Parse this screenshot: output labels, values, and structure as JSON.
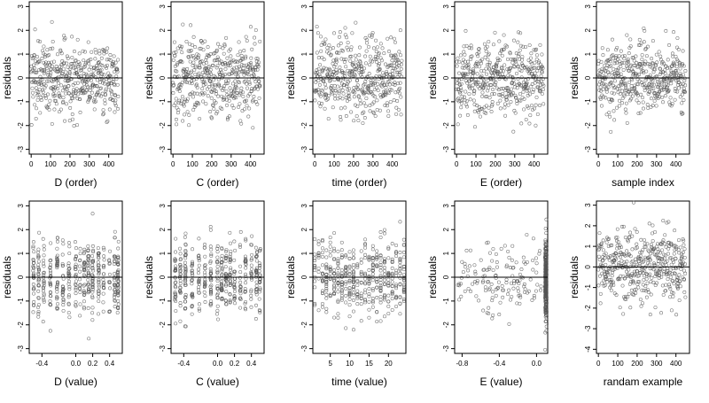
{
  "chart_data": [
    {
      "type": "scatter",
      "xlabel": "D (order)",
      "ylabel": "residuals",
      "xlim": [
        -10,
        470
      ],
      "ylim": [
        -3.2,
        3.2
      ],
      "xticks": [
        0,
        100,
        200,
        300,
        400
      ],
      "xtick_labels": [
        "0",
        "100",
        "200",
        "300",
        "400"
      ],
      "yticks": [
        -3,
        -2,
        -1,
        0,
        1,
        2,
        3
      ],
      "ytick_labels": [
        "-3",
        "-2",
        "-1",
        "0",
        "1",
        "2",
        "3"
      ],
      "hline": 0,
      "point_color": "#555555",
      "n_points": 450
    },
    {
      "type": "scatter",
      "xlabel": "C (order)",
      "ylabel": "residuals",
      "xlim": [
        -10,
        470
      ],
      "ylim": [
        -3.2,
        3.2
      ],
      "xticks": [
        0,
        100,
        200,
        300,
        400
      ],
      "xtick_labels": [
        "0",
        "100",
        "200",
        "300",
        "400"
      ],
      "yticks": [
        -3,
        -2,
        -1,
        0,
        1,
        2,
        3
      ],
      "ytick_labels": [
        "-3",
        "-2",
        "-1",
        "0",
        "1",
        "2",
        "3"
      ],
      "hline": 0,
      "point_color": "#555555",
      "n_points": 450
    },
    {
      "type": "scatter",
      "xlabel": "time (order)",
      "ylabel": "residuals",
      "xlim": [
        -10,
        470
      ],
      "ylim": [
        -3.2,
        3.2
      ],
      "xticks": [
        0,
        100,
        200,
        300,
        400
      ],
      "xtick_labels": [
        "0",
        "100",
        "200",
        "300",
        "400"
      ],
      "yticks": [
        -3,
        -2,
        -1,
        0,
        1,
        2,
        3
      ],
      "ytick_labels": [
        "-3",
        "-2",
        "-1",
        "0",
        "1",
        "2",
        "3"
      ],
      "hline": 0,
      "point_color": "#555555",
      "n_points": 450
    },
    {
      "type": "scatter",
      "xlabel": "E (order)",
      "ylabel": "residuals",
      "xlim": [
        -10,
        470
      ],
      "ylim": [
        -3.2,
        3.2
      ],
      "xticks": [
        0,
        100,
        200,
        300,
        400
      ],
      "xtick_labels": [
        "0",
        "100",
        "200",
        "300",
        "400"
      ],
      "yticks": [
        -3,
        -2,
        -1,
        0,
        1,
        2,
        3
      ],
      "ytick_labels": [
        "-3",
        "-2",
        "-1",
        "0",
        "1",
        "2",
        "3"
      ],
      "hline": 0,
      "point_color": "#555555",
      "n_points": 450
    },
    {
      "type": "scatter",
      "xlabel": "sample index",
      "ylabel": "residuals",
      "xlim": [
        -10,
        470
      ],
      "ylim": [
        -3.2,
        3.2
      ],
      "xticks": [
        0,
        100,
        200,
        300,
        400
      ],
      "xtick_labels": [
        "0",
        "100",
        "200",
        "300",
        "400"
      ],
      "yticks": [
        -3,
        -2,
        -1,
        0,
        1,
        2,
        3
      ],
      "ytick_labels": [
        "-3",
        "-2",
        "-1",
        "0",
        "1",
        "2",
        "3"
      ],
      "hline": 0,
      "point_color": "#555555",
      "n_points": 450
    },
    {
      "type": "scatter",
      "xlabel": "D (value)",
      "ylabel": "residuals",
      "xlim": [
        -0.55,
        0.55
      ],
      "ylim": [
        -3.2,
        3.2
      ],
      "xticks": [
        -0.4,
        0,
        0.2,
        0.4
      ],
      "xtick_labels": [
        "-0.4",
        "0.0",
        "0.2",
        "0.4"
      ],
      "yticks": [
        -3,
        -2,
        -1,
        0,
        1,
        2,
        3
      ],
      "ytick_labels": [
        "-3",
        "-2",
        "-1",
        "0",
        "1",
        "2",
        "3"
      ],
      "hline": 0,
      "point_color": "#555555",
      "n_points": 450
    },
    {
      "type": "scatter",
      "xlabel": "C (value)",
      "ylabel": "residuals",
      "xlim": [
        -0.55,
        0.55
      ],
      "ylim": [
        -3.2,
        3.2
      ],
      "xticks": [
        -0.4,
        0,
        0.2,
        0.4
      ],
      "xtick_labels": [
        "-0.4",
        "0.0",
        "0.2",
        "0.4"
      ],
      "yticks": [
        -3,
        -2,
        -1,
        0,
        1,
        2,
        3
      ],
      "ytick_labels": [
        "-3",
        "-2",
        "-1",
        "0",
        "1",
        "2",
        "3"
      ],
      "hline": 0,
      "point_color": "#555555",
      "n_points": 450
    },
    {
      "type": "scatter",
      "xlabel": "time (value)",
      "ylabel": "residuals",
      "xlim": [
        0.5,
        24.5
      ],
      "ylim": [
        -3.2,
        3.2
      ],
      "xticks": [
        5,
        10,
        15,
        20
      ],
      "xtick_labels": [
        "5",
        "10",
        "15",
        "20"
      ],
      "yticks": [
        -3,
        -2,
        -1,
        0,
        1,
        2,
        3
      ],
      "ytick_labels": [
        "-3",
        "-2",
        "-1",
        "0",
        "1",
        "2",
        "3"
      ],
      "hline": 0,
      "point_color": "#555555",
      "n_points": 450
    },
    {
      "type": "scatter",
      "xlabel": "E (value)",
      "ylabel": "residuals",
      "xlim": [
        -0.88,
        0.12
      ],
      "ylim": [
        -3.2,
        3.2
      ],
      "xticks": [
        -0.8,
        -0.4,
        0
      ],
      "xtick_labels": [
        "-0.8",
        "-0.4",
        "0.0"
      ],
      "yticks": [
        -3,
        -2,
        -1,
        0,
        1,
        2,
        3
      ],
      "ytick_labels": [
        "-3",
        "-2",
        "-1",
        "0",
        "1",
        "2",
        "3"
      ],
      "hline": 0,
      "point_color": "#555555",
      "n_points": 450
    },
    {
      "type": "scatter",
      "xlabel": "randam example",
      "ylabel": "residuals",
      "xlim": [
        -10,
        470
      ],
      "ylim": [
        -4.2,
        3.2
      ],
      "xticks": [
        0,
        100,
        200,
        300,
        400
      ],
      "xtick_labels": [
        "0",
        "100",
        "200",
        "300",
        "400"
      ],
      "yticks": [
        -4,
        -3,
        -2,
        -1,
        0,
        1,
        2,
        3
      ],
      "ytick_labels": [
        "-4",
        "-3",
        "-2",
        "-1",
        "0",
        "1",
        "2",
        "3"
      ],
      "hline": 0,
      "point_color": "#555555",
      "n_points": 450
    }
  ]
}
